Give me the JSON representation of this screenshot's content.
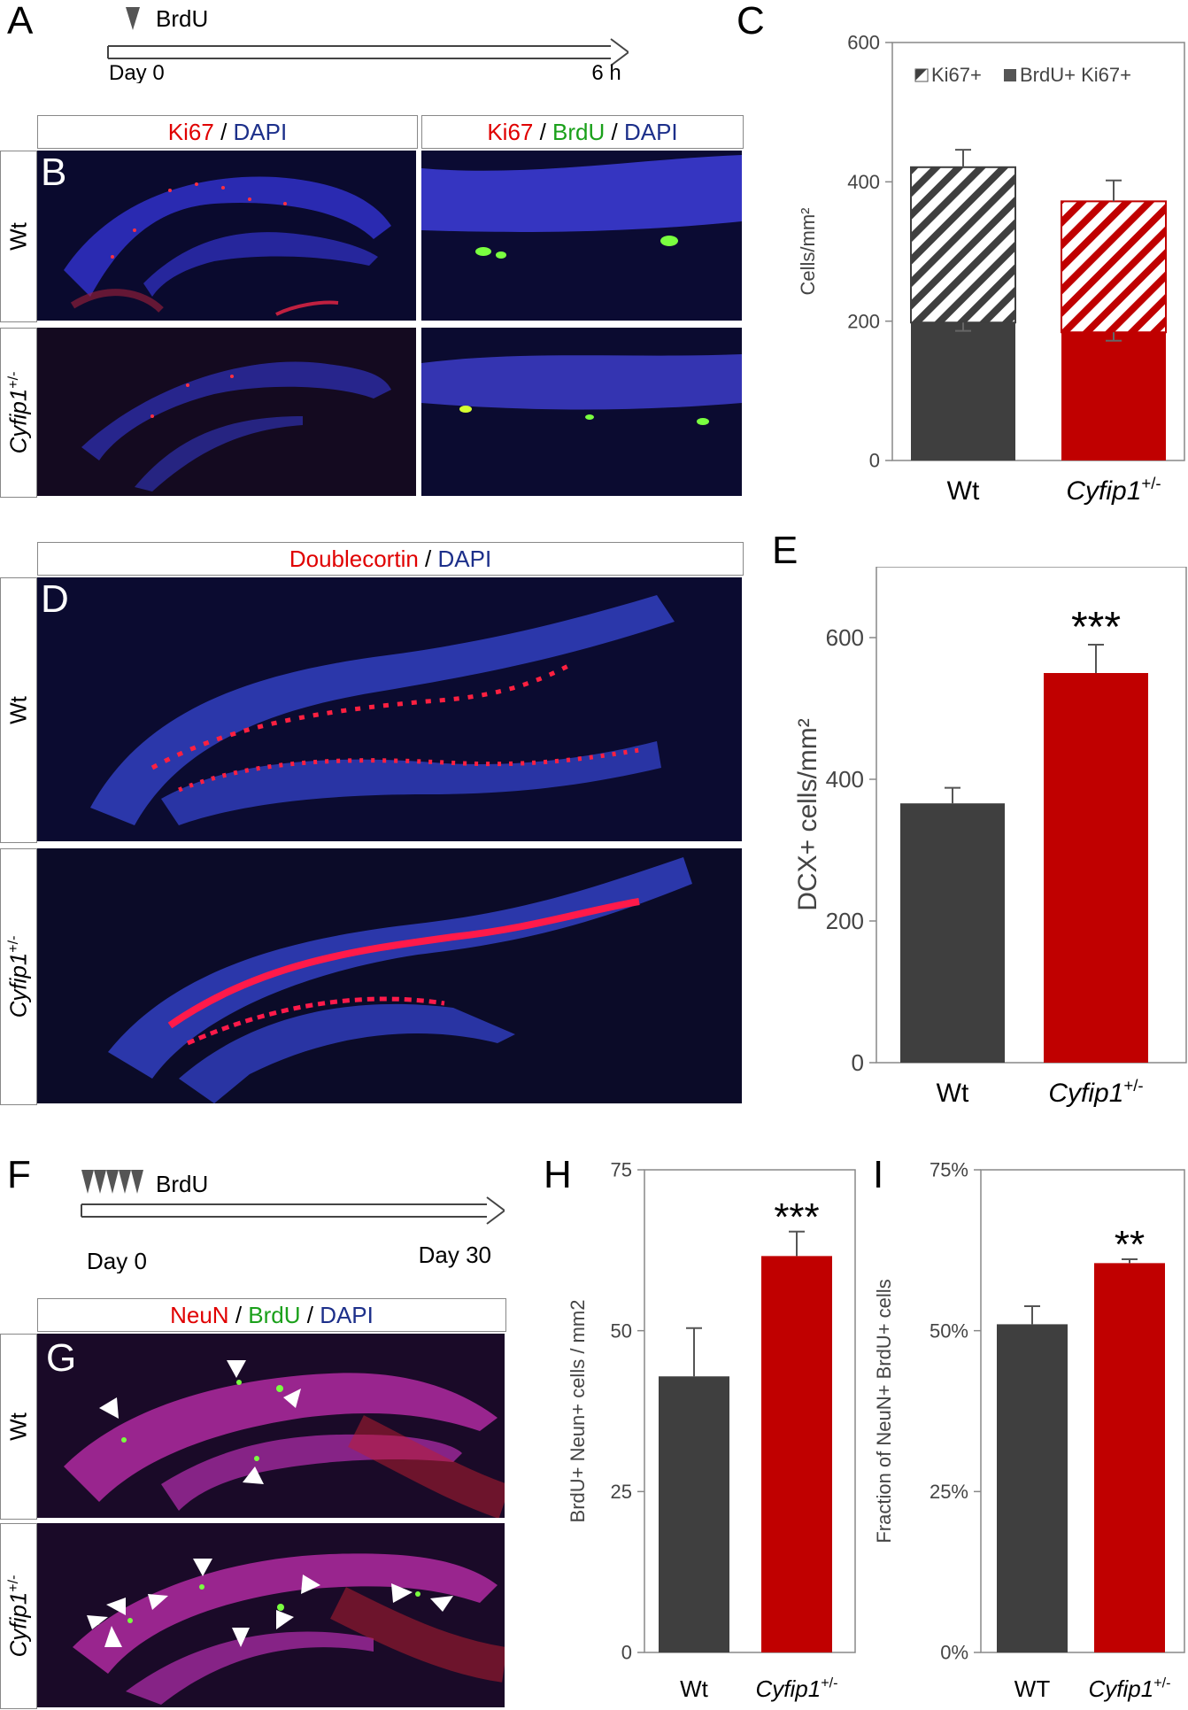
{
  "panel_letters": {
    "A": "A",
    "B": "B",
    "C": "C",
    "D": "D",
    "E": "E",
    "F": "F",
    "G": "G",
    "H": "H",
    "I": "I"
  },
  "panelA": {
    "marker": "BrdU",
    "start": "Day 0",
    "end": "6 h"
  },
  "panelB": {
    "left_header": {
      "a": "Ki67",
      "s1": " / ",
      "b": "DAPI"
    },
    "right_header": {
      "a": "Ki67",
      "s1": " / ",
      "b": "BrdU",
      "s2": " / ",
      "c": "DAPI"
    }
  },
  "panelD": {
    "header": {
      "a": "Doublecortin",
      "s1": " / ",
      "b": "DAPI"
    }
  },
  "panelF": {
    "marker": "BrdU",
    "start": "Day 0",
    "end": "Day 30"
  },
  "panelG": {
    "header": {
      "a": "NeuN",
      "s1": " / ",
      "b": "BrdU",
      "s2": " / ",
      "c": "DAPI"
    }
  },
  "rows": {
    "wt": "Wt",
    "cyf": "Cyfip1",
    "cyf_sup": "+/-"
  },
  "colors": {
    "wt": "#3f3f3f",
    "cyf": "#c00000",
    "axis": "#888888"
  },
  "chart_data": [
    {
      "panel": "C",
      "type": "bar",
      "stacked": true,
      "categories": [
        "Wt",
        "Cyfip1+/-"
      ],
      "ylabel": "Cells/mm²",
      "ylim": [
        0,
        600
      ],
      "yticks": [
        "0",
        "200",
        "400",
        "600"
      ],
      "legend": [
        "Ki67+",
        "BrdU+ Ki67+"
      ],
      "series": [
        {
          "name": "BrdU+ Ki67+",
          "values": [
            198,
            184
          ],
          "errors": [
            12,
            12
          ]
        },
        {
          "name": "Ki67+",
          "values": [
            421,
            372
          ],
          "errors": [
            25,
            30
          ]
        }
      ]
    },
    {
      "panel": "E",
      "type": "bar",
      "categories": [
        "Wt",
        "Cyfip1+/-"
      ],
      "ylabel": "DCX+ cells/mm²",
      "ylim": [
        0,
        700
      ],
      "yticks": [
        "0",
        "200",
        "400",
        "600"
      ],
      "values": [
        366,
        550
      ],
      "errors": [
        22,
        40
      ],
      "significance": "***"
    },
    {
      "panel": "H",
      "type": "bar",
      "categories": [
        "Wt",
        "Cyfip1+/-"
      ],
      "ylabel": "BrdU+ Neun+ cells / mm2",
      "ylim": [
        0,
        75
      ],
      "yticks": [
        "0",
        "25",
        "50",
        "75"
      ],
      "values": [
        42.9,
        61.6
      ],
      "errors": [
        7.5,
        3.8
      ],
      "significance": "***"
    },
    {
      "panel": "I",
      "type": "bar",
      "categories": [
        "WT",
        "Cyfip1+/-"
      ],
      "ylabel": "Fraction of NeuN+ BrdU+ cells",
      "ylim": [
        0,
        0.75
      ],
      "yticks": [
        "0%",
        "25%",
        "50%",
        "75%"
      ],
      "values": [
        0.51,
        0.605
      ],
      "errors": [
        0.028,
        0.006
      ],
      "significance": "**"
    }
  ]
}
